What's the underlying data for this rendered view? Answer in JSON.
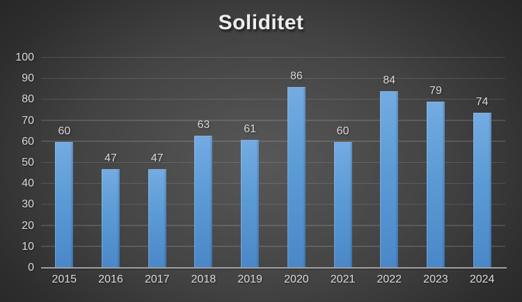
{
  "chart_data": {
    "type": "bar",
    "title": "Soliditet",
    "categories": [
      "2015",
      "2016",
      "2017",
      "2018",
      "2019",
      "2020",
      "2021",
      "2022",
      "2023",
      "2024"
    ],
    "values": [
      60,
      47,
      47,
      63,
      61,
      86,
      60,
      84,
      79,
      74
    ],
    "xlabel": "",
    "ylabel": "",
    "ylim": [
      0,
      100
    ],
    "ytick_interval": 10,
    "grid": true,
    "legend": false,
    "data_labels": true,
    "colors": {
      "bar_top": "#74abe2",
      "bar_mid": "#5b9bd5",
      "bar_bottom": "#4a87c8",
      "label_text": "#d9d9d9",
      "title_text": "#ededed",
      "gridline": "rgba(255,255,255,0.13)",
      "axis_line": "#a3a3a3",
      "background_center": "#585858",
      "background_edge": "#232323"
    }
  }
}
